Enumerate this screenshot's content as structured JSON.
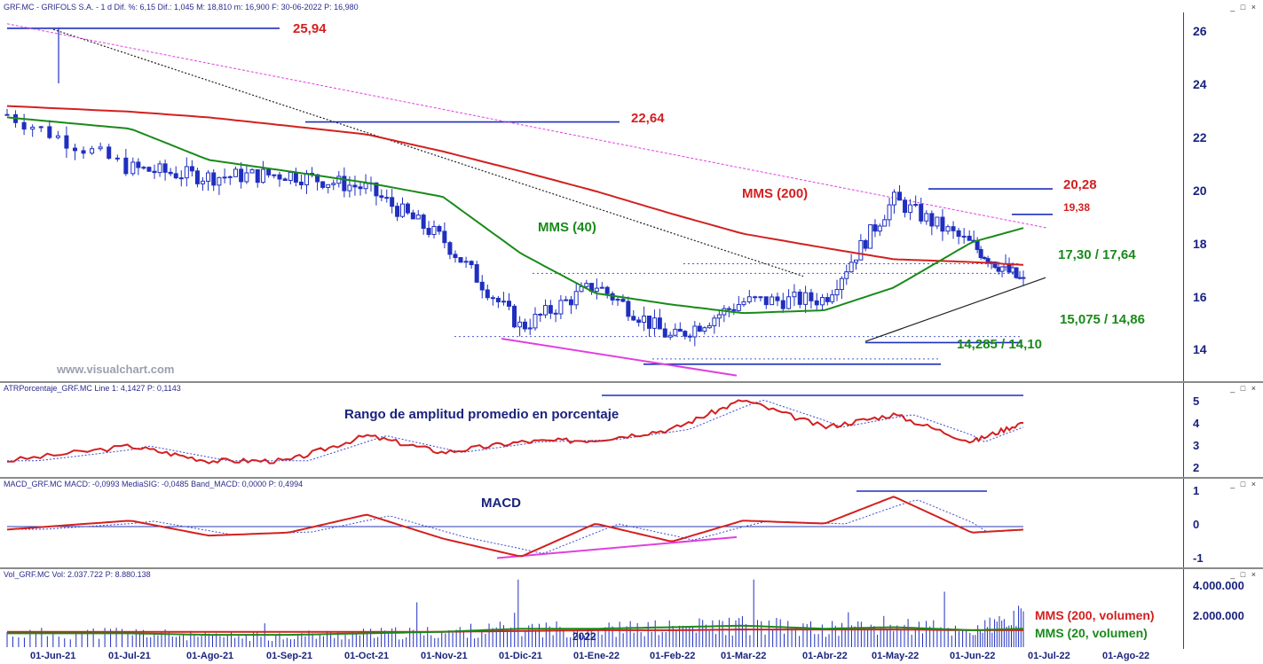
{
  "window": {
    "controls": "_ □ ×"
  },
  "price_panel": {
    "header": "GRF.MC - GRIFOLS S.A. - 1 d  Dif. %: 6,15  Dif.: 1,045  M: 18,810  m: 16,900  F: 30-06-2022  P: 16,980",
    "watermark": "www.visualchart.com",
    "annotations": {
      "level_2594": "25,94",
      "level_2264": "22,64",
      "level_2028": "20,28",
      "level_1938": "19,38",
      "level_1730": "17,30 / 17,64",
      "level_15075": "15,075 / 14,86",
      "level_14285": "14,285 / 14,10",
      "mms200": "MMS (200)",
      "mms40": "MMS (40)"
    },
    "y_ticks": [
      "26",
      "24",
      "22",
      "20",
      "18",
      "16",
      "14"
    ]
  },
  "atr_panel": {
    "header": "ATRPorcentaje_GRF.MC  Line 1: 4,1427  P: 0,1143",
    "title": "Rango de amplitud promedio en porcentaje",
    "y_ticks": [
      "5",
      "4",
      "3",
      "2"
    ]
  },
  "macd_panel": {
    "header": "MACD_GRF.MC  MACD: -0,0993  MediaSIG: -0,0485  Band_MACD: 0,0000  P: 0,4994",
    "title": "MACD",
    "y_ticks": [
      "1",
      "0",
      "-1"
    ]
  },
  "vol_panel": {
    "header": "Vol_GRF.MC  Vol: 2.037.722  P: 8.880.138",
    "year_label": "2022",
    "legend_mms200": "MMS (200, volumen)",
    "legend_mms20": "MMS (20, volumen)",
    "y_ticks": [
      "4.000.000",
      "2.000.000"
    ]
  },
  "x_axis": [
    "01-Jun-21",
    "01-Jul-21",
    "01-Ago-21",
    "01-Sep-21",
    "01-Oct-21",
    "01-Nov-21",
    "01-Dic-21",
    "01-Ene-22",
    "01-Feb-22",
    "01-Mar-22",
    "01-Abr-22",
    "01-May-22",
    "01-Jun-22",
    "01-Jul-22",
    "01-Ago-22"
  ],
  "colors": {
    "candle": "#1f2fbf",
    "mms200": "#d32020",
    "mms40": "#1a8a1a",
    "level_line": "#1f2fbf",
    "annotation_red": "#d32020",
    "annotation_green": "#1a8a1a",
    "trend_magenta": "#e040e0",
    "axis_text": "#1a237e"
  },
  "chart_data": [
    {
      "type": "candlestick",
      "title": "GRF.MC - GRIFOLS S.A.",
      "ylim": [
        13.5,
        26.5
      ],
      "x": [
        "01-Jun-21",
        "01-Jul-21",
        "01-Ago-21",
        "01-Sep-21",
        "01-Oct-21",
        "01-Nov-21",
        "01-Dic-21",
        "01-Ene-22",
        "01-Feb-22",
        "01-Mar-22",
        "01-Abr-22",
        "01-May-22",
        "01-Jun-22",
        "30-06-2022"
      ],
      "close_approx": [
        22.9,
        21.0,
        20.7,
        20.8,
        20.3,
        18.5,
        15.4,
        16.9,
        15.0,
        16.3,
        16.4,
        19.9,
        18.3,
        16.98
      ],
      "levels": [
        25.94,
        22.64,
        20.28,
        19.38,
        17.64,
        17.3,
        15.075,
        14.86,
        14.285,
        14.1
      ],
      "series": [
        {
          "name": "MMS (200)",
          "values": [
            23.2,
            23.0,
            22.8,
            22.5,
            22.2,
            21.6,
            20.9,
            20.2,
            19.4,
            18.7,
            18.2,
            17.8,
            17.7,
            17.6
          ]
        },
        {
          "name": "MMS (40)",
          "values": [
            22.8,
            22.4,
            21.3,
            20.9,
            20.5,
            20.0,
            18.0,
            16.6,
            16.2,
            15.9,
            16.0,
            16.8,
            18.4,
            18.9
          ]
        }
      ]
    },
    {
      "type": "line",
      "title": "Rango de amplitud promedio en porcentaje",
      "ylim": [
        1.7,
        5.5
      ],
      "x": [
        "01-Jun-21",
        "01-Jul-21",
        "01-Ago-21",
        "01-Sep-21",
        "01-Oct-21",
        "01-Nov-21",
        "01-Dic-21",
        "01-Ene-22",
        "01-Feb-22",
        "01-Mar-22",
        "01-Abr-22",
        "01-May-22",
        "01-Jun-22",
        "30-06-2022"
      ],
      "values": [
        2.3,
        3.0,
        2.3,
        2.3,
        3.5,
        2.7,
        3.2,
        3.3,
        3.8,
        5.2,
        3.9,
        4.5,
        3.2,
        4.14
      ]
    },
    {
      "type": "line",
      "title": "MACD",
      "ylim": [
        -1.3,
        1.3
      ],
      "x": [
        "01-Jun-21",
        "01-Jul-21",
        "01-Ago-21",
        "01-Sep-21",
        "01-Oct-21",
        "01-Nov-21",
        "01-Dic-21",
        "01-Ene-22",
        "01-Feb-22",
        "01-Mar-22",
        "01-Abr-22",
        "01-May-22",
        "01-Jun-22",
        "30-06-2022"
      ],
      "values": [
        -0.1,
        0.2,
        -0.3,
        -0.2,
        0.4,
        -0.4,
        -1.0,
        0.1,
        -0.5,
        0.2,
        0.1,
        1.0,
        -0.2,
        -0.1
      ]
    },
    {
      "type": "bar",
      "title": "Vol_GRF.MC",
      "ylim": [
        0,
        4500000
      ],
      "x": [
        "01-Jun-21",
        "01-Jul-21",
        "01-Ago-21",
        "01-Sep-21",
        "01-Oct-21",
        "01-Nov-21",
        "01-Dic-21",
        "01-Ene-22",
        "01-Feb-22",
        "01-Mar-22",
        "01-Abr-22",
        "01-May-22",
        "01-Jun-22",
        "30-06-2022"
      ],
      "values": [
        900000,
        1000000,
        700000,
        800000,
        900000,
        1000000,
        1300000,
        1200000,
        1300000,
        1500000,
        1200000,
        1500000,
        1100000,
        2037722
      ],
      "series": [
        {
          "name": "MMS (200, volumen)",
          "values": [
            1000000,
            1000000,
            1000000,
            1000000,
            1000000,
            1000000,
            1050000,
            1100000,
            1100000,
            1150000,
            1150000,
            1150000,
            1100000,
            1100000
          ]
        },
        {
          "name": "MMS (20, volumen)",
          "values": [
            900000,
            900000,
            800000,
            800000,
            900000,
            1000000,
            1200000,
            1200000,
            1300000,
            1400000,
            1200000,
            1300000,
            1100000,
            1200000
          ]
        }
      ]
    }
  ]
}
